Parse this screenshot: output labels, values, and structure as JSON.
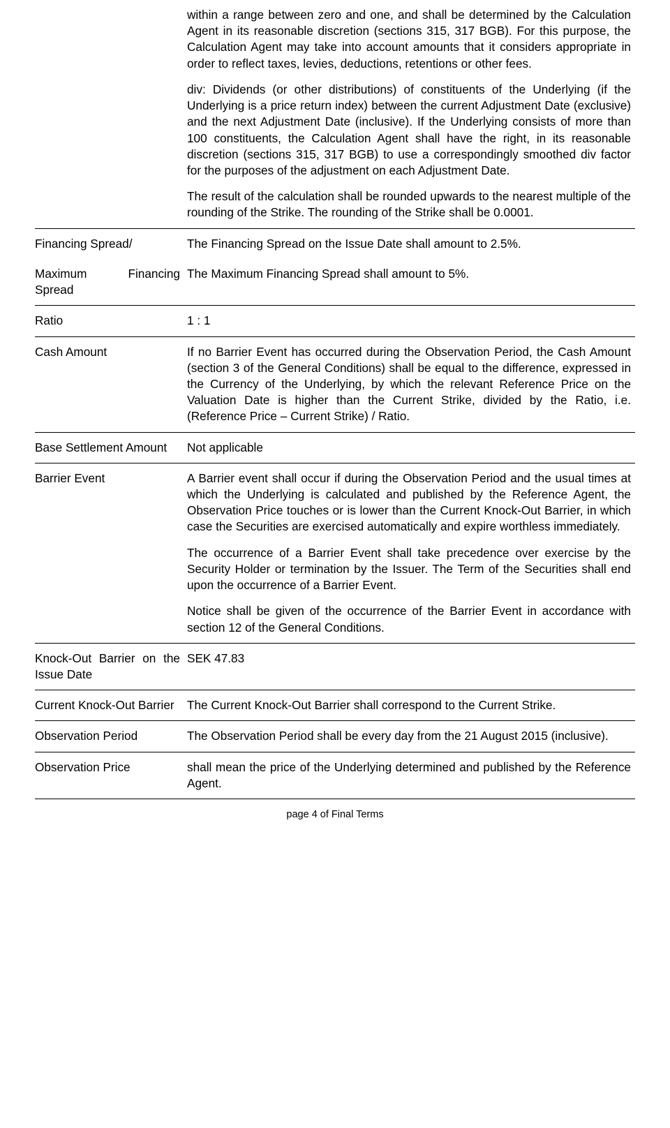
{
  "rows": [
    {
      "label": "",
      "paragraphs": [
        "within a range between zero and one, and shall be determined by the Calculation Agent in its reasonable discretion (sections 315, 317 BGB). For this purpose, the Calculation Agent may take into account amounts that it considers appropriate in order to reflect taxes, levies, deductions, retentions or other fees.",
        "div: Dividends (or other distributions) of constituents of the Underlying (if the Underlying is a price return index) between the current Adjustment Date (exclusive) and the next Adjustment Date (inclusive). If the Underlying consists of more than 100 constituents, the Calculation Agent shall have the right, in its reasonable discretion (sections 315, 317 BGB) to use a correspondingly smoothed div factor for the purposes of the adjustment on each Adjustment Date.",
        "The result of the calculation shall be rounded upwards to the nearest multiple of the rounding of the Strike. The rounding of the Strike shall be 0.0001."
      ]
    },
    {
      "label": "Financing Spread/",
      "paragraphs": [
        "The Financing Spread on the Issue Date shall amount to 2.5%."
      ]
    },
    {
      "label_html": "max_fin_spread",
      "label_left": "Maximum",
      "label_right": "Financing",
      "label_line2": "Spread",
      "paragraphs": [
        "The Maximum Financing Spread shall amount to 5%."
      ]
    },
    {
      "label": "Ratio",
      "paragraphs": [
        "1 : 1"
      ]
    },
    {
      "label": "Cash Amount",
      "paragraphs": [
        "If no Barrier Event has occurred during the Observation Period, the Cash Amount (section 3 of the General Conditions) shall be equal to the difference, expressed in the Currency of the Underlying, by which the relevant Reference Price on the Valuation Date is higher than the Current Strike, divided by the Ratio, i.e. (Reference Price – Current Strike) / Ratio."
      ]
    },
    {
      "label": "Base Settlement Amount",
      "paragraphs": [
        "Not applicable"
      ]
    },
    {
      "label": "Barrier Event",
      "paragraphs": [
        "A Barrier event shall occur if during the Observation Period and the usual times at which the Underlying is calculated and published by the Reference Agent, the Observation Price touches or is lower than the Current Knock-Out Barrier, in which case the Securities are exercised automatically and expire worthless immediately.",
        "The occurrence of a Barrier Event shall take precedence over exercise by the Security Holder or termination by the Issuer. The Term of the Securities shall end upon the occurrence of a Barrier Event.",
        "Notice shall be given of the occurrence of the Barrier Event in accordance with section 12 of the General Conditions."
      ]
    },
    {
      "label": "Knock-Out Barrier on the Issue Date",
      "paragraphs": [
        "SEK 47.83"
      ]
    },
    {
      "label": "Current Knock-Out Barrier",
      "paragraphs": [
        "The Current Knock-Out Barrier shall correspond to the Current Strike."
      ]
    },
    {
      "label": "Observation Period",
      "paragraphs": [
        "The Observation Period shall be every day from the 21 August 2015 (inclusive)."
      ]
    },
    {
      "label": "Observation Price",
      "paragraphs": [
        "shall mean the price of the Underlying determined and published by the Reference Agent."
      ]
    }
  ],
  "footer": "page 4 of Final Terms"
}
